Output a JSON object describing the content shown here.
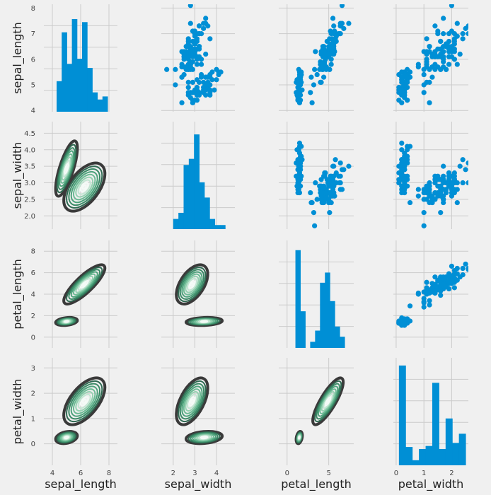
{
  "chart_data": {
    "type": "pairgrid",
    "variables": [
      "sepal_length",
      "sepal_width",
      "petal_length",
      "petal_width"
    ],
    "axis_labels": {
      "sepal_length": "sepal_length",
      "sepal_width": "sepal_width",
      "petal_length": "petal_length",
      "petal_width": "petal_width"
    },
    "x_axes": [
      {
        "var": "sepal_length",
        "lim": [
          3.4,
          8.6
        ],
        "ticks": [
          4,
          6,
          8
        ],
        "tick_labels": [
          "4",
          "6",
          "8"
        ]
      },
      {
        "var": "sepal_width",
        "lim": [
          1.45,
          4.85
        ],
        "ticks": [
          2,
          3,
          4
        ],
        "tick_labels": [
          "2",
          "3",
          "4"
        ]
      },
      {
        "var": "petal_length",
        "lim": [
          -1.0,
          8.0
        ],
        "ticks": [
          0,
          5
        ],
        "tick_labels": [
          "0",
          "5"
        ]
      },
      {
        "var": "petal_width",
        "lim": [
          -0.1,
          2.6
        ],
        "ticks": [
          0,
          1,
          2
        ],
        "tick_labels": [
          "0",
          "1",
          "2"
        ]
      }
    ],
    "y_axes": [
      {
        "var": "sepal_length",
        "lim": [
          3.95,
          8.15
        ],
        "ticks": [
          4,
          5,
          6,
          7,
          8
        ],
        "tick_labels": [
          "4",
          "5",
          "6",
          "7",
          "8"
        ]
      },
      {
        "var": "sepal_width",
        "lim": [
          1.6,
          4.85
        ],
        "ticks": [
          2.0,
          2.5,
          3.0,
          3.5,
          4.0,
          4.5
        ],
        "tick_labels": [
          "2.0",
          "2.5",
          "3.0",
          "3.5",
          "4.0",
          "4.5"
        ]
      },
      {
        "var": "petal_length",
        "lim": [
          -1.0,
          9.0
        ],
        "ticks": [
          0,
          2,
          4,
          6,
          8
        ],
        "tick_labels": [
          "0",
          "2",
          "4",
          "6",
          "8"
        ]
      },
      {
        "var": "petal_width",
        "lim": [
          -0.85,
          3.4
        ],
        "ticks": [
          0,
          1,
          2,
          3
        ],
        "tick_labels": [
          "0",
          "1",
          "2",
          "3"
        ]
      }
    ],
    "upper": "scatter",
    "diag": "histogram",
    "lower": "kde",
    "histograms": [
      {
        "var": "sepal_length",
        "bins": [
          4.3,
          4.66,
          5.02,
          5.38,
          5.74,
          6.1,
          6.46,
          6.82,
          7.18,
          7.54,
          7.9
        ],
        "heights": [
          0.3,
          0.78,
          0.47,
          0.91,
          0.52,
          0.88,
          0.43,
          0.19,
          0.12,
          0.15
        ]
      },
      {
        "var": "sepal_width",
        "bins": [
          2.0,
          2.24,
          2.48,
          2.72,
          2.96,
          3.2,
          3.44,
          3.68,
          3.92,
          4.16,
          4.4
        ],
        "heights": [
          0.1,
          0.16,
          0.63,
          0.69,
          0.93,
          0.46,
          0.31,
          0.1,
          0.04,
          0.04
        ]
      },
      {
        "var": "petal_length",
        "bins": [
          1.0,
          1.59,
          2.18,
          2.77,
          3.36,
          3.95,
          4.54,
          5.13,
          5.72,
          6.31,
          6.9
        ],
        "heights": [
          0.96,
          0.36,
          0.0,
          0.06,
          0.17,
          0.64,
          0.74,
          0.46,
          0.21,
          0.11
        ]
      },
      {
        "var": "petal_width",
        "bins": [
          0.1,
          0.34,
          0.58,
          0.82,
          1.06,
          1.3,
          1.54,
          1.78,
          2.02,
          2.26,
          2.5
        ],
        "heights": [
          0.98,
          0.18,
          0.05,
          0.16,
          0.19,
          0.81,
          0.16,
          0.46,
          0.22,
          0.31
        ]
      }
    ],
    "clusters": {
      "setosa": {
        "means": {
          "sepal_length": 5.0,
          "sepal_width": 3.43,
          "petal_length": 1.46,
          "petal_width": 0.25
        },
        "sds": {
          "sepal_length": 0.35,
          "sepal_width": 0.38,
          "petal_length": 0.17,
          "petal_width": 0.11
        },
        "corr": {
          "sepal_length|sepal_width": 0.74,
          "sepal_length|petal_length": 0.27,
          "sepal_length|petal_width": 0.28,
          "sepal_width|petal_length": 0.18,
          "sepal_width|petal_width": 0.23,
          "petal_length|petal_width": 0.33
        }
      },
      "versicolor_virginica": {
        "means": {
          "sepal_length": 6.26,
          "sepal_width": 2.87,
          "petal_length": 4.91,
          "petal_width": 1.68
        },
        "sds": {
          "sepal_length": 0.66,
          "sepal_width": 0.33,
          "petal_length": 0.83,
          "petal_width": 0.42
        },
        "corr": {
          "sepal_length|sepal_width": 0.55,
          "sepal_length|petal_length": 0.83,
          "sepal_length|petal_width": 0.59,
          "sepal_width|petal_length": 0.52,
          "sepal_width|petal_width": 0.56,
          "petal_length|petal_width": 0.82
        }
      }
    },
    "n_points": {
      "setosa": 50,
      "versicolor_virginica": 100
    },
    "grid": true,
    "colors": {
      "background": "#f0f0f0",
      "grid": "#cbcbcb",
      "histogram": "#008fd5",
      "scatter": "#008fd5",
      "kde_outer": "#3a3a3a",
      "kde_inner": [
        "#2f6a52",
        "#3a8a66",
        "#4ea37c",
        "#6dbb95",
        "#95d1b1",
        "#c3e6d3",
        "#f4fbf7"
      ]
    }
  }
}
